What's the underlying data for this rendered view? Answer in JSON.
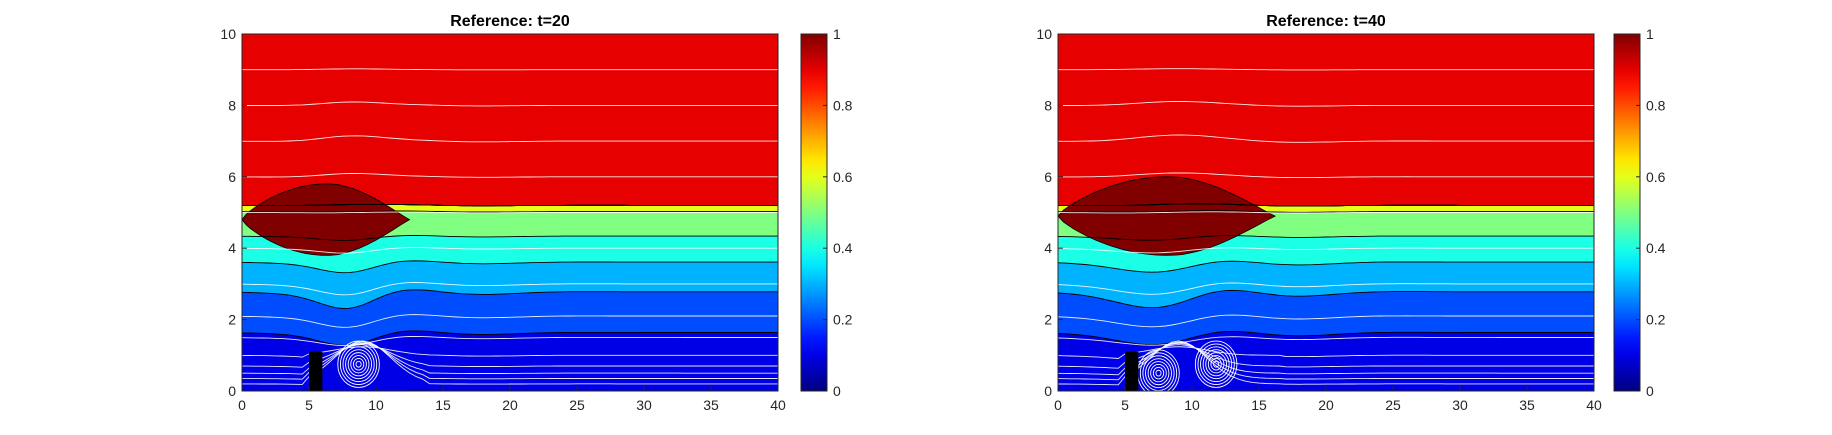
{
  "chart_data": [
    {
      "type": "heatmap",
      "title": "Reference: t=20",
      "xlabel": "",
      "ylabel": "",
      "xlim": [
        0,
        40
      ],
      "ylim": [
        0,
        10
      ],
      "xticks": [
        0,
        5,
        10,
        15,
        20,
        25,
        30,
        35,
        40
      ],
      "yticks": [
        0,
        2,
        4,
        6,
        8,
        10
      ],
      "colormap": "jet",
      "clim": [
        0,
        1
      ],
      "colorbar_ticks": [
        0,
        0.2,
        0.4,
        0.6,
        0.8,
        1
      ],
      "contour_levels": [
        0.05,
        0.15,
        0.25,
        0.35,
        0.45,
        0.55,
        0.65,
        0.75,
        0.85,
        0.95
      ],
      "obstacle": {
        "x": [
          5,
          6
        ],
        "y": [
          0,
          1.1
        ]
      },
      "max_region": {
        "x": [
          0,
          12.5
        ],
        "y": [
          3.8,
          5.8
        ],
        "value": 0.98
      },
      "vortices": [
        {
          "x": 8.7,
          "y": 0.75
        }
      ],
      "grid": false,
      "legend": "none"
    },
    {
      "type": "heatmap",
      "title": "Reference: t=40",
      "xlabel": "",
      "ylabel": "",
      "xlim": [
        0,
        40
      ],
      "ylim": [
        0,
        10
      ],
      "xticks": [
        0,
        5,
        10,
        15,
        20,
        25,
        30,
        35,
        40
      ],
      "yticks": [
        0,
        2,
        4,
        6,
        8,
        10
      ],
      "colormap": "jet",
      "clim": [
        0,
        1
      ],
      "colorbar_ticks": [
        0,
        0.2,
        0.4,
        0.6,
        0.8,
        1
      ],
      "contour_levels": [
        0.05,
        0.15,
        0.25,
        0.35,
        0.45,
        0.55,
        0.65,
        0.75,
        0.85,
        0.95
      ],
      "obstacle": {
        "x": [
          5,
          6
        ],
        "y": [
          0,
          1.1
        ]
      },
      "max_region": {
        "x": [
          0,
          16.2
        ],
        "y": [
          3.8,
          6.0
        ],
        "value": 0.98
      },
      "vortices": [
        {
          "x": 7.5,
          "y": 0.5
        },
        {
          "x": 11.8,
          "y": 0.75
        }
      ],
      "grid": false,
      "legend": "none"
    }
  ]
}
